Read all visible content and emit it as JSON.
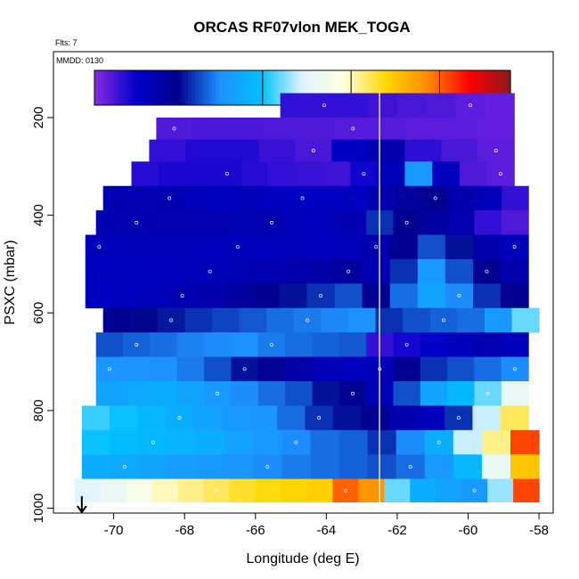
{
  "chart_data": {
    "type": "heatmap",
    "title": "ORCAS RF07vlon MEK_TOGA",
    "annotations": {
      "flts": "Flts: 7",
      "mmdd": "MMDD: 0130"
    },
    "xlabel": "Longitude (deg E)",
    "ylabel": "PSXC (mbar)",
    "xlim": [
      -71.7,
      -57.6
    ],
    "ylim": [
      1010,
      65
    ],
    "y_reversed": true,
    "xticks": [
      -70,
      -68,
      -66,
      -64,
      -62,
      -60,
      -58
    ],
    "yticks": [
      200,
      400,
      600,
      800,
      1000
    ],
    "colorbar": {
      "range": [
        0.5,
        24
      ],
      "ticks": [
        5,
        10,
        15,
        20
      ],
      "colors": [
        "#8a2be2",
        "#0000cd",
        "#00008b",
        "#1e90ff",
        "#00bfff",
        "#e0f4ff",
        "#ffffe0",
        "#ffd700",
        "#ff8c00",
        "#ff0000",
        "#8b1a1a"
      ]
    },
    "reference_longitude": -62.5,
    "marker_longitude": -70.9,
    "rows": [
      {
        "p": 175,
        "lon": [
          -65.3,
          -58.7
        ],
        "v": [
          2.0,
          2.0,
          2.0,
          1.8,
          1.6,
          1.5,
          1.3,
          1.2
        ]
      },
      {
        "p": 225,
        "lon": [
          -68.8,
          -58.7
        ],
        "v": [
          1.5,
          1.6,
          1.6,
          1.5,
          1.5,
          1.4,
          1.4,
          1.3,
          1.3,
          1.2
        ]
      },
      {
        "p": 265,
        "lon": [
          -69.0,
          -58.7
        ],
        "v": [
          2.0,
          2.3,
          2.3,
          1.9,
          1.6,
          3.2,
          4.0,
          2.1,
          1.6,
          1.3
        ]
      },
      {
        "p": 315,
        "lon": [
          -69.5,
          -58.7
        ],
        "v": [
          2.2,
          2.4,
          2.4,
          2.4,
          2.2,
          2.0,
          1.9,
          1.8,
          2.6,
          3.6,
          8.0,
          3.4,
          1.5,
          1.3
        ]
      },
      {
        "p": 365,
        "lon": [
          -70.3,
          -58.3
        ],
        "v": [
          3.8,
          3.8,
          3.8,
          3.6,
          3.4,
          3.6,
          3.3,
          3.2,
          3.2,
          3.3,
          4.0,
          4.5,
          5.0,
          4.0,
          3.5,
          2.0
        ]
      },
      {
        "p": 415,
        "lon": [
          -70.5,
          -58.3
        ],
        "v": [
          3.8,
          3.8,
          3.9,
          3.9,
          3.9,
          3.7,
          3.8,
          3.6,
          3.5,
          3.8,
          6.0,
          5.0,
          4.5,
          3.8,
          2.0,
          1.5
        ]
      },
      {
        "p": 465,
        "lon": [
          -70.8,
          -58.3
        ],
        "v": [
          3.5,
          3.6,
          3.6,
          3.6,
          3.5,
          3.5,
          3.5,
          3.6,
          3.5,
          3.6,
          3.8,
          5.0,
          6.5,
          5.5,
          4.0,
          3.5
        ]
      },
      {
        "p": 515,
        "lon": [
          -70.8,
          -58.3
        ],
        "v": [
          3.3,
          3.3,
          3.4,
          3.6,
          3.6,
          3.7,
          3.8,
          4.0,
          4.2,
          4.5,
          3.8,
          6.0,
          8.0,
          6.5,
          5.0,
          4.0
        ]
      },
      {
        "p": 565,
        "lon": [
          -70.8,
          -58.3
        ],
        "v": [
          3.2,
          3.4,
          3.6,
          3.8,
          4.0,
          4.5,
          5.0,
          5.5,
          6.0,
          6.5,
          5.0,
          7.0,
          8.5,
          7.5,
          6.0,
          5.0
        ]
      },
      {
        "p": 615,
        "lon": [
          -70.3,
          -58.0
        ],
        "v": [
          5.0,
          5.3,
          5.6,
          6.0,
          6.3,
          6.6,
          7.0,
          7.2,
          7.4,
          7.6,
          6.0,
          6.5,
          6.8,
          7.0,
          8.0,
          11.0
        ]
      },
      {
        "p": 665,
        "lon": [
          -70.5,
          -58.3
        ],
        "v": [
          6.5,
          6.8,
          7.0,
          7.3,
          7.5,
          7.6,
          7.2,
          7.0,
          6.8,
          6.6,
          2.0,
          2.5,
          3.0,
          3.5,
          3.8,
          3.5
        ]
      },
      {
        "p": 715,
        "lon": [
          -70.5,
          -58.3
        ],
        "v": [
          7.8,
          7.8,
          7.6,
          7.2,
          6.5,
          5.5,
          4.8,
          4.2,
          3.6,
          3.4,
          3.6,
          5.0,
          6.0,
          6.5,
          7.0,
          7.5
        ]
      },
      {
        "p": 765,
        "lon": [
          -70.5,
          -58.3
        ],
        "v": [
          8.5,
          8.8,
          9.0,
          8.5,
          8.0,
          7.5,
          7.0,
          6.5,
          5.5,
          5.0,
          3.6,
          6.5,
          8.5,
          9.5,
          11.0,
          13.0
        ]
      },
      {
        "p": 815,
        "lon": [
          -70.9,
          -58.3
        ],
        "v": [
          10.5,
          10.0,
          9.5,
          9.0,
          8.5,
          8.0,
          7.8,
          7.0,
          6.0,
          5.5,
          5.0,
          4.0,
          3.5,
          6.0,
          12.0,
          16.0
        ]
      },
      {
        "p": 865,
        "lon": [
          -70.9,
          -58.0
        ],
        "v": [
          10.0,
          9.8,
          9.5,
          9.3,
          9.0,
          8.5,
          8.0,
          7.5,
          7.0,
          6.8,
          6.0,
          7.5,
          9.0,
          12.0,
          15.5,
          20.5
        ]
      },
      {
        "p": 915,
        "lon": [
          -70.9,
          -58.0
        ],
        "v": [
          9.0,
          8.8,
          8.5,
          8.2,
          8.0,
          7.8,
          7.5,
          7.2,
          7.0,
          6.8,
          6.5,
          7.0,
          8.0,
          9.5,
          13.0,
          17.5
        ]
      },
      {
        "p": 965,
        "lon": [
          -71.1,
          -58.0
        ],
        "v": [
          12.5,
          13.0,
          14.0,
          15.0,
          15.5,
          16.0,
          16.5,
          16.8,
          17.0,
          17.2,
          20.0,
          19.0,
          11.0,
          9.0,
          8.5,
          8.0,
          11.5,
          20.5
        ]
      }
    ]
  }
}
